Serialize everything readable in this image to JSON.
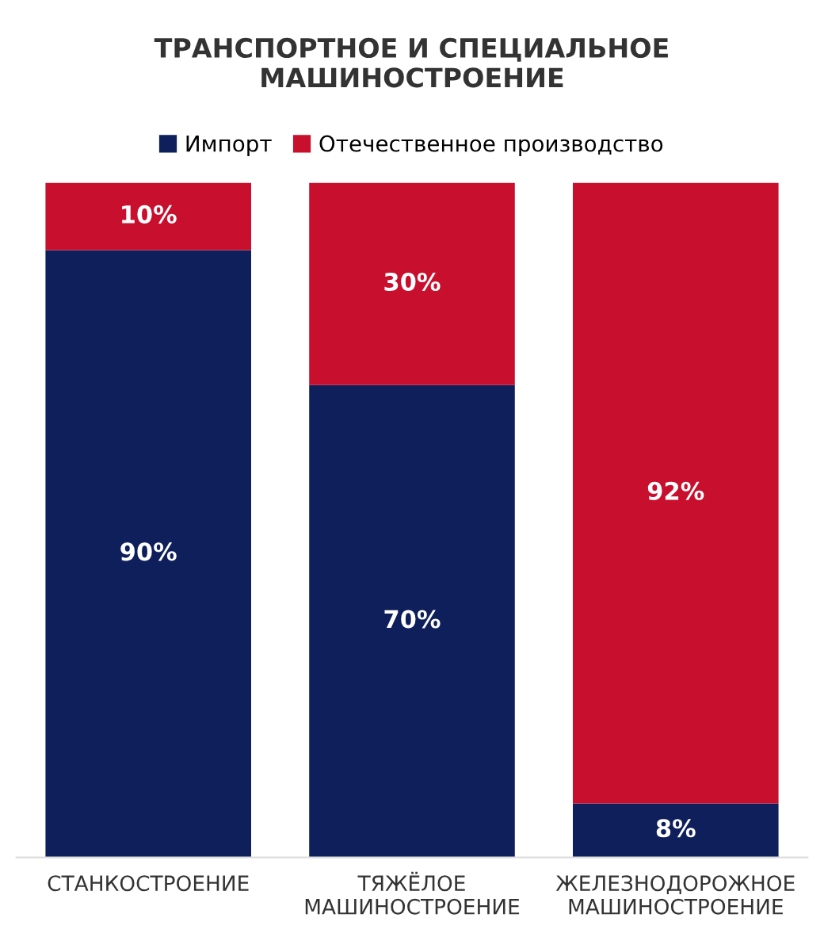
{
  "chart_data": {
    "type": "bar",
    "title": "ТРАНСПОРТНОЕ И СПЕЦИАЛЬНОЕ\nМАШИНОСТРОЕНИЕ",
    "stacked": true,
    "legend": "top",
    "categories": [
      "СТАНКОСТРОЕНИЕ",
      "ТЯЖЁЛОЕ\nМАШИНОСТРОЕНИЕ",
      "ЖЕЛЕЗНОДОРОЖНОЕ\nМАШИНОСТРОЕНИЕ"
    ],
    "series": [
      {
        "name": "Импорт",
        "color": "#0e1f5b",
        "values": [
          90,
          70,
          8
        ],
        "value_labels": [
          "90%",
          "70%",
          "8%"
        ]
      },
      {
        "name": "Отечественное производство",
        "color": "#c8102e",
        "values": [
          10,
          30,
          92
        ],
        "value_labels": [
          "10%",
          "30%",
          "92%"
        ]
      }
    ]
  }
}
